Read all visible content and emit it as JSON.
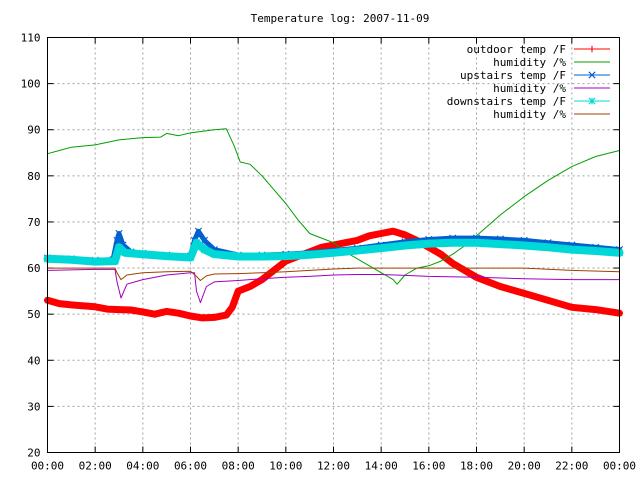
{
  "chart_data": {
    "type": "line",
    "title": "Temperature log: 2007-11-09",
    "xlabel": "",
    "ylabel": "",
    "x_unit": "time of day",
    "xlim": [
      "00:00",
      "24:00"
    ],
    "ylim": [
      20,
      110
    ],
    "grid": true,
    "legend_position": "top-right",
    "x_ticks": [
      "00:00",
      "02:00",
      "04:00",
      "06:00",
      "08:00",
      "10:00",
      "12:00",
      "14:00",
      "16:00",
      "18:00",
      "20:00",
      "22:00",
      "00:00"
    ],
    "y_ticks": [
      "20",
      "30",
      "40",
      "50",
      "60",
      "70",
      "80",
      "90",
      "100",
      "110"
    ],
    "series": [
      {
        "name": "outdoor temp /F",
        "color": "#ff0000",
        "marker": "plus",
        "points": [
          [
            "00:00",
            53
          ],
          [
            "00:30",
            52.3
          ],
          [
            "01:00",
            52
          ],
          [
            "02:00",
            51.6
          ],
          [
            "02:30",
            51.1
          ],
          [
            "03:00",
            51
          ],
          [
            "03:30",
            50.9
          ],
          [
            "04:00",
            50.5
          ],
          [
            "04:30",
            50
          ],
          [
            "05:00",
            50.6
          ],
          [
            "05:30",
            50.2
          ],
          [
            "06:00",
            49.6
          ],
          [
            "06:30",
            49.2
          ],
          [
            "07:00",
            49.3
          ],
          [
            "07:30",
            49.8
          ],
          [
            "07:45",
            51.5
          ],
          [
            "08:00",
            55
          ],
          [
            "08:30",
            56
          ],
          [
            "09:00",
            57.5
          ],
          [
            "09:30",
            59.5
          ],
          [
            "10:00",
            61.5
          ],
          [
            "10:30",
            62.5
          ],
          [
            "11:00",
            63.5
          ],
          [
            "11:30",
            64.5
          ],
          [
            "12:00",
            65
          ],
          [
            "12:30",
            65.5
          ],
          [
            "13:00",
            66
          ],
          [
            "13:30",
            67
          ],
          [
            "14:00",
            67.5
          ],
          [
            "14:30",
            68
          ],
          [
            "15:00",
            67.2
          ],
          [
            "15:30",
            66
          ],
          [
            "16:00",
            64.5
          ],
          [
            "16:30",
            63
          ],
          [
            "17:00",
            61
          ],
          [
            "18:00",
            58
          ],
          [
            "19:00",
            56
          ],
          [
            "20:00",
            54.5
          ],
          [
            "21:00",
            53
          ],
          [
            "22:00",
            51.5
          ],
          [
            "23:00",
            51
          ],
          [
            "24:00",
            50.2
          ]
        ]
      },
      {
        "name": "humidity /%",
        "color": "#00a000",
        "marker": "none",
        "points": [
          [
            "00:00",
            84.8
          ],
          [
            "00:30",
            85.5
          ],
          [
            "01:00",
            86.2
          ],
          [
            "02:00",
            86.7
          ],
          [
            "03:00",
            87.8
          ],
          [
            "04:00",
            88.3
          ],
          [
            "04:45",
            88.4
          ],
          [
            "05:00",
            89.2
          ],
          [
            "05:30",
            88.7
          ],
          [
            "06:00",
            89.3
          ],
          [
            "07:00",
            90
          ],
          [
            "07:30",
            90.2
          ],
          [
            "07:50",
            86.5
          ],
          [
            "08:05",
            83
          ],
          [
            "08:30",
            82.5
          ],
          [
            "09:00",
            80
          ],
          [
            "09:30",
            77
          ],
          [
            "10:00",
            74
          ],
          [
            "10:30",
            70.5
          ],
          [
            "11:00",
            67.5
          ],
          [
            "11:30",
            66.5
          ],
          [
            "12:00",
            65.5
          ],
          [
            "12:30",
            63.5
          ],
          [
            "13:00",
            62
          ],
          [
            "13:30",
            60.5
          ],
          [
            "14:00",
            59
          ],
          [
            "14:30",
            57.5
          ],
          [
            "14:40",
            56.5
          ],
          [
            "15:00",
            58.5
          ],
          [
            "15:30",
            60
          ],
          [
            "16:00",
            60.5
          ],
          [
            "16:30",
            61.5
          ],
          [
            "17:00",
            63
          ],
          [
            "17:30",
            64.8
          ],
          [
            "18:00",
            67
          ],
          [
            "19:00",
            71.5
          ],
          [
            "20:00",
            75.5
          ],
          [
            "21:00",
            79
          ],
          [
            "22:00",
            82
          ],
          [
            "23:00",
            84.2
          ],
          [
            "24:00",
            85.5
          ]
        ]
      },
      {
        "name": "upstairs temp /F",
        "color": "#0060d0",
        "marker": "cross",
        "points": [
          [
            "00:00",
            62.2
          ],
          [
            "01:00",
            62
          ],
          [
            "02:00",
            61.7
          ],
          [
            "02:45",
            61.8
          ],
          [
            "02:55",
            66
          ],
          [
            "03:00",
            67.5
          ],
          [
            "03:10",
            65
          ],
          [
            "03:30",
            63.5
          ],
          [
            "04:00",
            63.2
          ],
          [
            "05:00",
            62.8
          ],
          [
            "06:00",
            62.6
          ],
          [
            "06:10",
            66
          ],
          [
            "06:20",
            68
          ],
          [
            "06:35",
            66
          ],
          [
            "07:00",
            64
          ],
          [
            "08:00",
            62.8
          ],
          [
            "09:00",
            62.8
          ],
          [
            "10:00",
            63
          ],
          [
            "11:00",
            63.3
          ],
          [
            "12:00",
            63.8
          ],
          [
            "13:00",
            64.3
          ],
          [
            "14:00",
            65
          ],
          [
            "15:00",
            65.7
          ],
          [
            "16:00",
            66.2
          ],
          [
            "17:00",
            66.5
          ],
          [
            "18:00",
            66.5
          ],
          [
            "19:00",
            66.3
          ],
          [
            "20:00",
            66
          ],
          [
            "21:00",
            65.5
          ],
          [
            "22:00",
            65
          ],
          [
            "23:00",
            64.5
          ],
          [
            "24:00",
            64
          ]
        ]
      },
      {
        "name": "humidity /%",
        "color": "#a000c0",
        "marker": "none",
        "points": [
          [
            "00:00",
            59.5
          ],
          [
            "01:00",
            59.6
          ],
          [
            "02:00",
            59.7
          ],
          [
            "02:50",
            59.7
          ],
          [
            "02:55",
            57
          ],
          [
            "03:05",
            53.5
          ],
          [
            "03:20",
            56.5
          ],
          [
            "04:00",
            57.5
          ],
          [
            "05:00",
            58.5
          ],
          [
            "06:00",
            59
          ],
          [
            "06:10",
            59
          ],
          [
            "06:15",
            55
          ],
          [
            "06:25",
            52.5
          ],
          [
            "06:40",
            56
          ],
          [
            "07:00",
            57
          ],
          [
            "08:00",
            57.3
          ],
          [
            "09:00",
            57.7
          ],
          [
            "10:00",
            58
          ],
          [
            "11:00",
            58.2
          ],
          [
            "12:00",
            58.5
          ],
          [
            "13:00",
            58.6
          ],
          [
            "14:00",
            58.6
          ],
          [
            "15:00",
            58.4
          ],
          [
            "16:00",
            58.2
          ],
          [
            "18:00",
            58
          ],
          [
            "20:00",
            57.7
          ],
          [
            "22:00",
            57.5
          ],
          [
            "24:00",
            57.5
          ]
        ]
      },
      {
        "name": "downstairs temp /F",
        "color": "#00d8d8",
        "marker": "star",
        "points": [
          [
            "00:00",
            62
          ],
          [
            "01:00",
            61.8
          ],
          [
            "02:00",
            61.4
          ],
          [
            "02:50",
            61.5
          ],
          [
            "03:00",
            64.5
          ],
          [
            "03:15",
            63.3
          ],
          [
            "04:00",
            63
          ],
          [
            "05:00",
            62.6
          ],
          [
            "06:00",
            62.3
          ],
          [
            "06:15",
            65.5
          ],
          [
            "06:35",
            64
          ],
          [
            "07:00",
            63
          ],
          [
            "08:00",
            62.5
          ],
          [
            "09:00",
            62.5
          ],
          [
            "10:00",
            62.6
          ],
          [
            "11:00",
            62.9
          ],
          [
            "12:00",
            63.3
          ],
          [
            "13:00",
            63.8
          ],
          [
            "14:00",
            64.3
          ],
          [
            "15:00",
            64.9
          ],
          [
            "16:00",
            65.3
          ],
          [
            "17:00",
            65.5
          ],
          [
            "18:00",
            65.5
          ],
          [
            "19:00",
            65.2
          ],
          [
            "20:00",
            64.9
          ],
          [
            "21:00",
            64.5
          ],
          [
            "22:00",
            64
          ],
          [
            "23:00",
            63.7
          ],
          [
            "24:00",
            63.3
          ]
        ]
      },
      {
        "name": "humidity /%",
        "color": "#a04000",
        "marker": "none",
        "points": [
          [
            "00:00",
            60
          ],
          [
            "01:00",
            60
          ],
          [
            "02:00",
            60
          ],
          [
            "02:50",
            60
          ],
          [
            "02:55",
            59
          ],
          [
            "03:05",
            57.5
          ],
          [
            "03:20",
            58.5
          ],
          [
            "04:00",
            59
          ],
          [
            "05:00",
            59.2
          ],
          [
            "06:00",
            59.3
          ],
          [
            "06:15",
            58.2
          ],
          [
            "06:25",
            57.3
          ],
          [
            "06:40",
            58.3
          ],
          [
            "07:00",
            58.7
          ],
          [
            "08:00",
            58.8
          ],
          [
            "09:00",
            59
          ],
          [
            "10:00",
            59.2
          ],
          [
            "11:00",
            59.5
          ],
          [
            "12:00",
            59.8
          ],
          [
            "13:00",
            60
          ],
          [
            "14:00",
            60
          ],
          [
            "15:00",
            60
          ],
          [
            "16:00",
            60
          ],
          [
            "18:00",
            60
          ],
          [
            "20:00",
            60
          ],
          [
            "22:00",
            59.5
          ],
          [
            "24:00",
            59.2
          ]
        ]
      }
    ]
  }
}
